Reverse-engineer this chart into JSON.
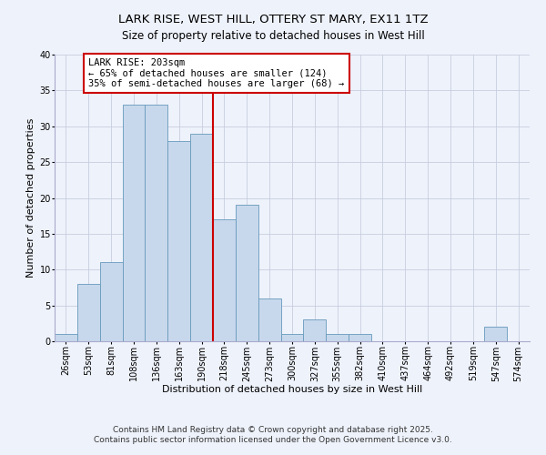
{
  "title": "LARK RISE, WEST HILL, OTTERY ST MARY, EX11 1TZ",
  "subtitle": "Size of property relative to detached houses in West Hill",
  "xlabel": "Distribution of detached houses by size in West Hill",
  "ylabel": "Number of detached properties",
  "bin_labels": [
    "26sqm",
    "53sqm",
    "81sqm",
    "108sqm",
    "136sqm",
    "163sqm",
    "190sqm",
    "218sqm",
    "245sqm",
    "273sqm",
    "300sqm",
    "327sqm",
    "355sqm",
    "382sqm",
    "410sqm",
    "437sqm",
    "464sqm",
    "492sqm",
    "519sqm",
    "547sqm",
    "574sqm"
  ],
  "bar_values": [
    1,
    8,
    11,
    33,
    33,
    28,
    29,
    17,
    19,
    6,
    1,
    3,
    1,
    1,
    0,
    0,
    0,
    0,
    0,
    2,
    0
  ],
  "bar_color": "#c8d8ec",
  "bar_edge_color": "#6699bb",
  "vline_x_index": 6,
  "vline_color": "#cc0000",
  "annotation_title": "LARK RISE: 203sqm",
  "annotation_line1": "← 65% of detached houses are smaller (124)",
  "annotation_line2": "35% of semi-detached houses are larger (68) →",
  "annotation_box_facecolor": "#ffffff",
  "annotation_box_edgecolor": "#cc0000",
  "ylim": [
    0,
    40
  ],
  "yticks": [
    0,
    5,
    10,
    15,
    20,
    25,
    30,
    35,
    40
  ],
  "background_color": "#eef2fb",
  "grid_color": "#c8cedf",
  "footnote1": "Contains HM Land Registry data © Crown copyright and database right 2025.",
  "footnote2": "Contains public sector information licensed under the Open Government Licence v3.0.",
  "title_fontsize": 9.5,
  "subtitle_fontsize": 8.5,
  "axis_label_fontsize": 8,
  "tick_fontsize": 7,
  "annotation_fontsize": 7.5,
  "footnote_fontsize": 6.5
}
